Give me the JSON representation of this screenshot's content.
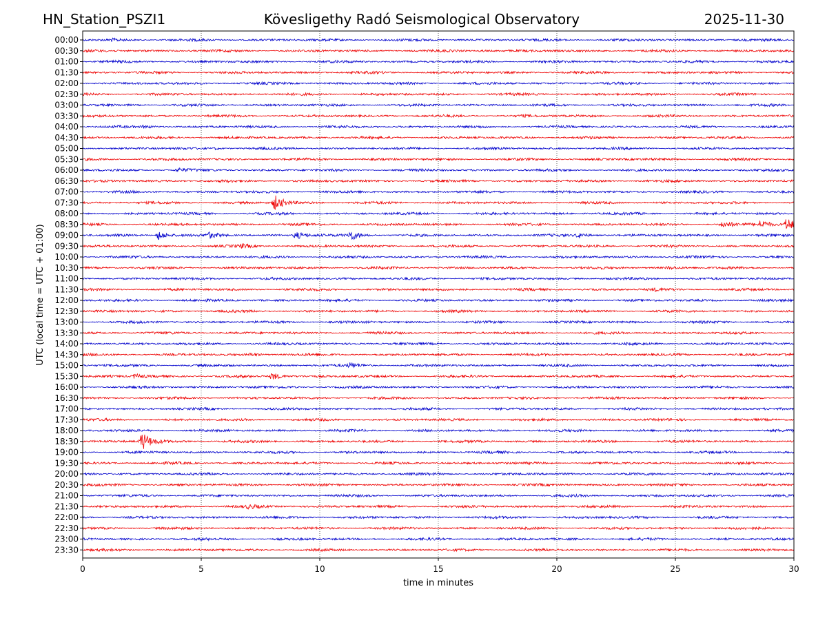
{
  "header": {
    "station": "HN_Station_PSZI1",
    "title": "Kövesligethy Radó Seismological Observatory",
    "date": "2025-11-30"
  },
  "chart_data": {
    "type": "line",
    "subtype": "helicorder",
    "xlabel": "time in minutes",
    "ylabel": "UTC (local time = UTC + 01:00)",
    "xlim": [
      0,
      30
    ],
    "x_ticks": [
      "0",
      "5",
      "10",
      "15",
      "20",
      "25",
      "30"
    ],
    "vertical_gridlines_at": [
      5,
      10,
      15,
      20,
      25
    ],
    "grid": "dotted vertical",
    "row_labels": [
      "00:00",
      "00:30",
      "01:00",
      "01:30",
      "02:00",
      "02:30",
      "03:00",
      "03:30",
      "04:00",
      "04:30",
      "05:00",
      "05:30",
      "06:00",
      "06:30",
      "07:00",
      "07:30",
      "08:00",
      "08:30",
      "09:00",
      "09:30",
      "10:00",
      "10:30",
      "11:00",
      "11:30",
      "12:00",
      "12:30",
      "13:00",
      "13:30",
      "14:00",
      "14:30",
      "15:00",
      "15:30",
      "16:00",
      "16:30",
      "17:00",
      "17:30",
      "18:00",
      "18:30",
      "19:00",
      "19:30",
      "20:00",
      "20:30",
      "21:00",
      "21:30",
      "22:00",
      "22:30",
      "23:00",
      "23:30"
    ],
    "trace_colors": [
      "#0000cc",
      "#ee0000"
    ],
    "events": [
      {
        "row": "00:00",
        "minute": 1.2,
        "amplitude": 1.6
      },
      {
        "row": "00:30",
        "minute": 16.8,
        "amplitude": 1.5
      },
      {
        "row": "03:30",
        "minute": 18.5,
        "amplitude": 1.4
      },
      {
        "row": "04:00",
        "minute": 2.6,
        "amplitude": 1.6
      },
      {
        "row": "05:00",
        "minute": 5.6,
        "amplitude": 1.4
      },
      {
        "row": "06:00",
        "minute": 4.0,
        "amplitude": 2.0
      },
      {
        "row": "07:30",
        "minute": 8.1,
        "amplitude": 5.0
      },
      {
        "row": "08:30",
        "minute": 27.0,
        "amplitude": 2.5
      },
      {
        "row": "08:30",
        "minute": 28.6,
        "amplitude": 3.2
      },
      {
        "row": "08:30",
        "minute": 29.7,
        "amplitude": 4.5
      },
      {
        "row": "09:00",
        "minute": 3.2,
        "amplitude": 3.5
      },
      {
        "row": "09:00",
        "minute": 5.3,
        "amplitude": 2.5
      },
      {
        "row": "09:00",
        "minute": 9.0,
        "amplitude": 3.0
      },
      {
        "row": "09:00",
        "minute": 11.3,
        "amplitude": 3.8
      },
      {
        "row": "09:00",
        "minute": 20.9,
        "amplitude": 2.5
      },
      {
        "row": "09:30",
        "minute": 6.7,
        "amplitude": 1.8
      },
      {
        "row": "10:30",
        "minute": 24.7,
        "amplitude": 1.6
      },
      {
        "row": "11:30",
        "minute": 24.1,
        "amplitude": 1.6
      },
      {
        "row": "14:30",
        "minute": 7.1,
        "amplitude": 1.8
      },
      {
        "row": "14:30",
        "minute": 29.6,
        "amplitude": 1.6
      },
      {
        "row": "15:00",
        "minute": 11.3,
        "amplitude": 2.2
      },
      {
        "row": "15:30",
        "minute": 2.2,
        "amplitude": 2.2
      },
      {
        "row": "15:30",
        "minute": 8.0,
        "amplitude": 3.0
      },
      {
        "row": "18:30",
        "minute": 2.5,
        "amplitude": 6.0
      },
      {
        "row": "21:30",
        "minute": 7.0,
        "amplitude": 1.8
      }
    ]
  }
}
